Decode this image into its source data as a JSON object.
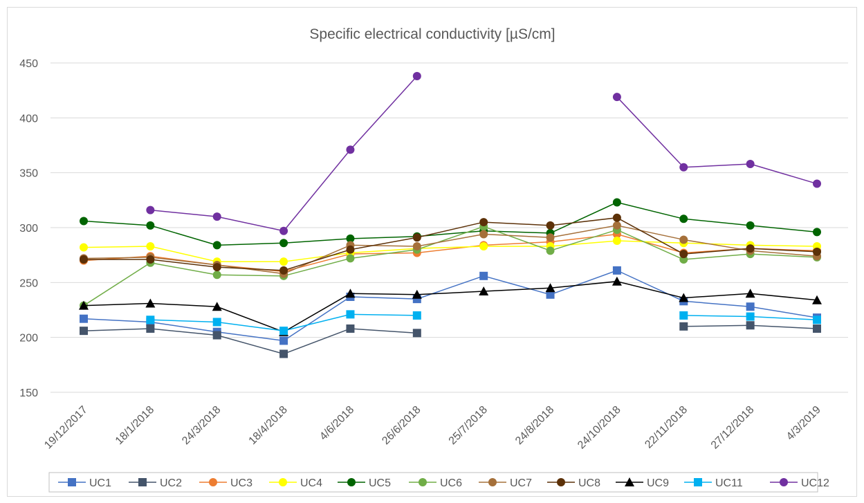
{
  "chart_data": {
    "type": "line",
    "title": "Specific electrical conductivity [µS/cm]",
    "xlabel": "",
    "ylabel": "",
    "ylim": [
      150,
      450
    ],
    "yticks": [
      150,
      200,
      250,
      300,
      350,
      400,
      450
    ],
    "grid": "horizontal",
    "legend_position": "bottom",
    "categories": [
      "19/12/2017",
      "18/1/2018",
      "24/3/2018",
      "18/4/2018",
      "4/6/2018",
      "26/6/2018",
      "25/7/2018",
      "24/8/2018",
      "24/10/2018",
      "22/11/2018",
      "27/12/2018",
      "4/3/2019"
    ],
    "series": [
      {
        "name": "UC1",
        "color": "#4472c4",
        "marker": "square",
        "values": [
          217,
          214,
          205,
          197,
          237,
          235,
          256,
          239,
          261,
          233,
          228,
          218
        ]
      },
      {
        "name": "UC2",
        "color": "#44546a",
        "marker": "square",
        "values": [
          206,
          208,
          202,
          185,
          208,
          204,
          null,
          null,
          null,
          210,
          211,
          208
        ]
      },
      {
        "name": "UC3",
        "color": "#ed7d31",
        "marker": "circle",
        "values": [
          270,
          274,
          266,
          260,
          276,
          277,
          284,
          287,
          294,
          277,
          281,
          279
        ]
      },
      {
        "name": "UC4",
        "color": "#ffff00",
        "marker": "circle",
        "values": [
          282,
          283,
          269,
          269,
          277,
          281,
          283,
          283,
          288,
          286,
          284,
          283
        ]
      },
      {
        "name": "UC5",
        "color": "#006400",
        "marker": "circle",
        "values": [
          306,
          302,
          284,
          286,
          290,
          292,
          297,
          295,
          323,
          308,
          302,
          296
        ]
      },
      {
        "name": "UC6",
        "color": "#70ad47",
        "marker": "circle",
        "values": [
          229,
          268,
          257,
          256,
          272,
          280,
          301,
          279,
          298,
          271,
          276,
          273
        ]
      },
      {
        "name": "UC7",
        "color": "#a5703a",
        "marker": "circle",
        "values": [
          272,
          273,
          266,
          258,
          284,
          283,
          294,
          291,
          302,
          289,
          279,
          274
        ]
      },
      {
        "name": "UC8",
        "color": "#5c3108",
        "marker": "circle",
        "values": [
          271,
          271,
          264,
          261,
          280,
          291,
          305,
          302,
          309,
          276,
          281,
          278
        ]
      },
      {
        "name": "UC9",
        "color": "#000000",
        "marker": "triangle",
        "values": [
          229,
          231,
          228,
          205,
          240,
          239,
          242,
          245,
          251,
          236,
          240,
          234
        ]
      },
      {
        "name": "UC11",
        "color": "#00b0f0",
        "marker": "square",
        "values": [
          null,
          216,
          214,
          206,
          221,
          220,
          null,
          null,
          null,
          220,
          219,
          216
        ]
      },
      {
        "name": "UC12",
        "color": "#7030a0",
        "marker": "circle",
        "values": [
          null,
          316,
          310,
          297,
          371,
          438,
          null,
          null,
          419,
          355,
          358,
          340
        ]
      }
    ]
  }
}
